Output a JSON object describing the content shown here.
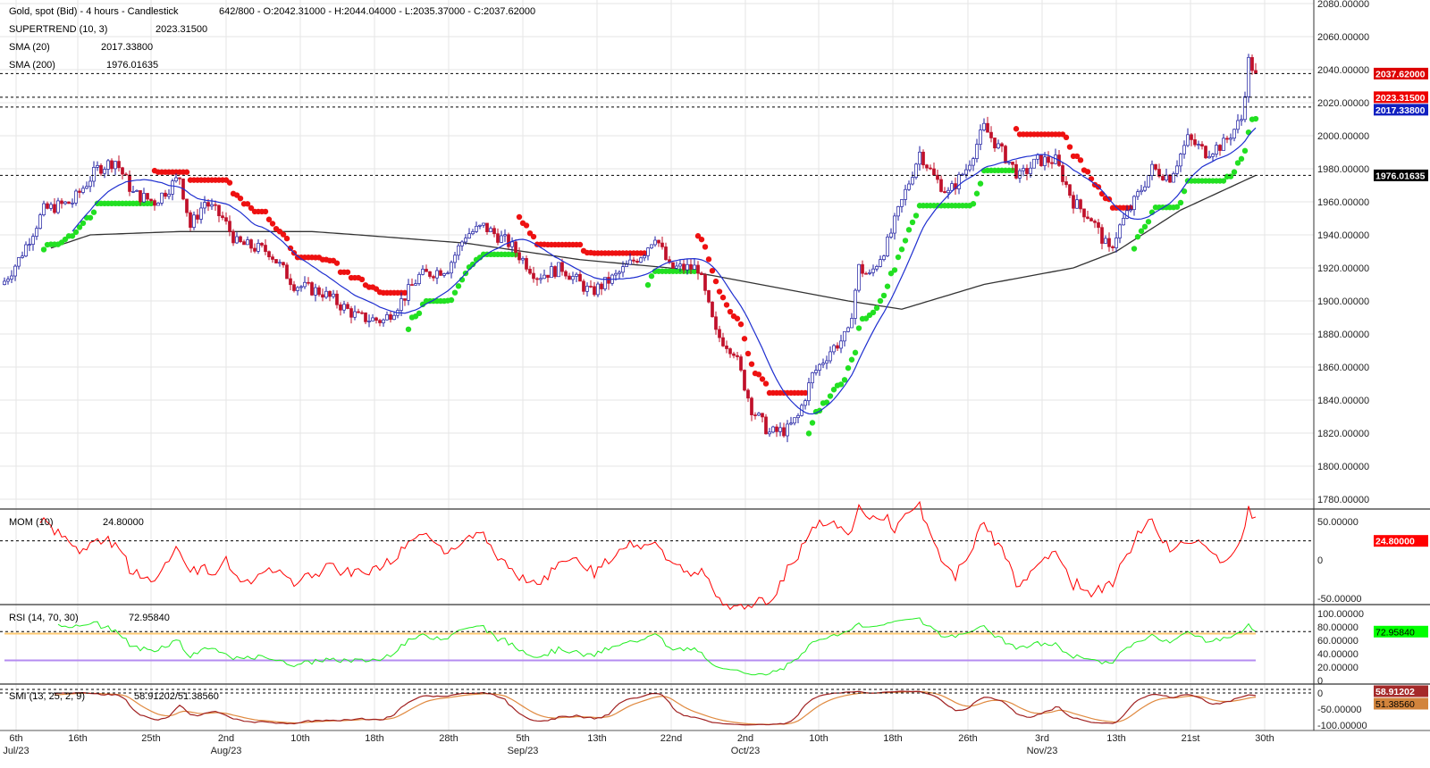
{
  "header": {
    "title": "Gold, spot (Bid) - 4 hours - Candlestick",
    "ohlc": "642/800 - O:2042.31000 - H:2044.04000 - L:2035.37000 - C:2037.62000"
  },
  "indicators": {
    "supertrend": {
      "label": "SUPERTREND (10, 3)",
      "value": "2023.31500"
    },
    "sma20": {
      "label": "SMA (20)",
      "value": "2017.33800"
    },
    "sma200": {
      "label": "SMA (200)",
      "value": "1976.01635"
    },
    "mom": {
      "label": "MOM (10)",
      "value": "24.80000"
    },
    "rsi": {
      "label": "RSI (14, 70, 30)",
      "value": "72.95840"
    },
    "smi": {
      "label": "SMI (13, 25, 2, 9)",
      "value": "58.91202/51.38560"
    }
  },
  "colors": {
    "up_candle": "#1a1aa0",
    "down_candle": "#c0102a",
    "sma20": "#1f2fd0",
    "sma200": "#333333",
    "supertrend_up": "#22e022",
    "supertrend_down": "#ee1111",
    "mom": "#ff0000",
    "rsi": "#22ee22",
    "rsi_overbought": "#ffc870",
    "rsi_oversold": "#b58cf0",
    "smi": "#a02020",
    "smi_signal": "#e08a40"
  },
  "chart_data": [
    {
      "type": "candlestick",
      "title": "Gold, spot (Bid) - 4 hours - Candlestick",
      "y_ticks": [
        "2080.00000",
        "2060.00000",
        "2040.00000",
        "2020.00000",
        "2000.00000",
        "1980.00000",
        "1960.00000",
        "1940.00000",
        "1920.00000",
        "1900.00000",
        "1880.00000",
        "1860.00000",
        "1840.00000",
        "1820.00000",
        "1800.00000",
        "1780.00000"
      ],
      "ylim": [
        1780,
        2080
      ],
      "x_ticks": [
        {
          "day": "6th",
          "month": "Jul/23"
        },
        {
          "day": "16th",
          "month": ""
        },
        {
          "day": "25th",
          "month": ""
        },
        {
          "day": "2nd",
          "month": "Aug/23"
        },
        {
          "day": "10th",
          "month": ""
        },
        {
          "day": "18th",
          "month": ""
        },
        {
          "day": "28th",
          "month": ""
        },
        {
          "day": "5th",
          "month": "Sep/23"
        },
        {
          "day": "13th",
          "month": ""
        },
        {
          "day": "22nd",
          "month": ""
        },
        {
          "day": "2nd",
          "month": "Oct/23"
        },
        {
          "day": "10th",
          "month": ""
        },
        {
          "day": "18th",
          "month": ""
        },
        {
          "day": "26th",
          "month": ""
        },
        {
          "day": "3rd",
          "month": "Nov/23"
        },
        {
          "day": "13th",
          "month": ""
        },
        {
          "day": "21st",
          "month": ""
        },
        {
          "day": "30th",
          "month": ""
        }
      ],
      "close_path": [
        [
          0,
          1912
        ],
        [
          4,
          1925
        ],
        [
          11,
          1955
        ],
        [
          19,
          1960
        ],
        [
          26,
          1980
        ],
        [
          31,
          1985
        ],
        [
          36,
          1965
        ],
        [
          42,
          1960
        ],
        [
          49,
          1975
        ],
        [
          52,
          1945
        ],
        [
          56,
          1960
        ],
        [
          61,
          1950
        ],
        [
          65,
          1935
        ],
        [
          74,
          1930
        ],
        [
          81,
          1910
        ],
        [
          89,
          1905
        ],
        [
          99,
          1890
        ],
        [
          106,
          1888
        ],
        [
          111,
          1900
        ],
        [
          116,
          1915
        ],
        [
          124,
          1920
        ],
        [
          129,
          1940
        ],
        [
          134,
          1945
        ],
        [
          141,
          1935
        ],
        [
          149,
          1915
        ],
        [
          156,
          1920
        ],
        [
          164,
          1905
        ],
        [
          171,
          1915
        ],
        [
          179,
          1930
        ],
        [
          182,
          1940
        ],
        [
          186,
          1920
        ],
        [
          194,
          1920
        ],
        [
          199,
          1880
        ],
        [
          204,
          1870
        ],
        [
          209,
          1835
        ],
        [
          214,
          1820
        ],
        [
          219,
          1822
        ],
        [
          222,
          1830
        ],
        [
          226,
          1855
        ],
        [
          231,
          1870
        ],
        [
          236,
          1880
        ],
        [
          239,
          1920
        ],
        [
          242,
          1915
        ],
        [
          247,
          1935
        ],
        [
          251,
          1960
        ],
        [
          256,
          1990
        ],
        [
          260,
          1975
        ],
        [
          264,
          1965
        ],
        [
          269,
          1980
        ],
        [
          274,
          2005
        ],
        [
          279,
          1990
        ],
        [
          284,
          1975
        ],
        [
          289,
          1985
        ],
        [
          294,
          1985
        ],
        [
          299,
          1960
        ],
        [
          304,
          1950
        ],
        [
          309,
          1930
        ],
        [
          312,
          1945
        ],
        [
          316,
          1960
        ],
        [
          321,
          1980
        ],
        [
          326,
          1975
        ],
        [
          331,
          1998
        ],
        [
          336,
          1990
        ],
        [
          341,
          1995
        ],
        [
          346,
          2010
        ],
        [
          348,
          2045
        ],
        [
          350,
          2038
        ]
      ],
      "sma200_path": [
        [
          13,
          1932
        ],
        [
          24,
          1940
        ],
        [
          49,
          1942
        ],
        [
          86,
          1942
        ],
        [
          99,
          1940
        ],
        [
          129,
          1935
        ],
        [
          161,
          1925
        ],
        [
          186,
          1920
        ],
        [
          199,
          1915
        ],
        [
          236,
          1900
        ],
        [
          251,
          1895
        ],
        [
          274,
          1910
        ],
        [
          299,
          1920
        ],
        [
          311,
          1930
        ],
        [
          329,
          1955
        ],
        [
          350,
          1976
        ]
      ],
      "last_close": 2037.62,
      "supertrend_last": 2023.315,
      "sma20_last": 2017.338,
      "sma200_last": 1976.01635
    },
    {
      "type": "line",
      "name": "MOM (10)",
      "y_ticks": [
        "50.00000",
        "0",
        "-50.00000"
      ],
      "ylim": [
        -50,
        50
      ],
      "last": 24.8
    },
    {
      "type": "line",
      "name": "RSI (14, 70, 30)",
      "y_ticks": [
        "100.00000",
        "80.00000",
        "60.00000",
        "40.00000",
        "20.00000",
        "0"
      ],
      "ylim": [
        0,
        100
      ],
      "levels": [
        70,
        30
      ],
      "last": 72.9584
    },
    {
      "type": "line",
      "name": "SMI (13, 25, 2, 9)",
      "y_ticks": [
        "0",
        "-50.00000",
        "-100.00000"
      ],
      "last": [
        58.91202,
        51.3856
      ]
    }
  ],
  "price_labels": {
    "last": "2037.62000",
    "supertrend": "2023.31500",
    "sma20": "2017.33800",
    "sma200": "1976.01635",
    "mom": "24.80000",
    "rsi": "72.95840",
    "smi": "58.91202",
    "smi_signal": "51.38560"
  }
}
